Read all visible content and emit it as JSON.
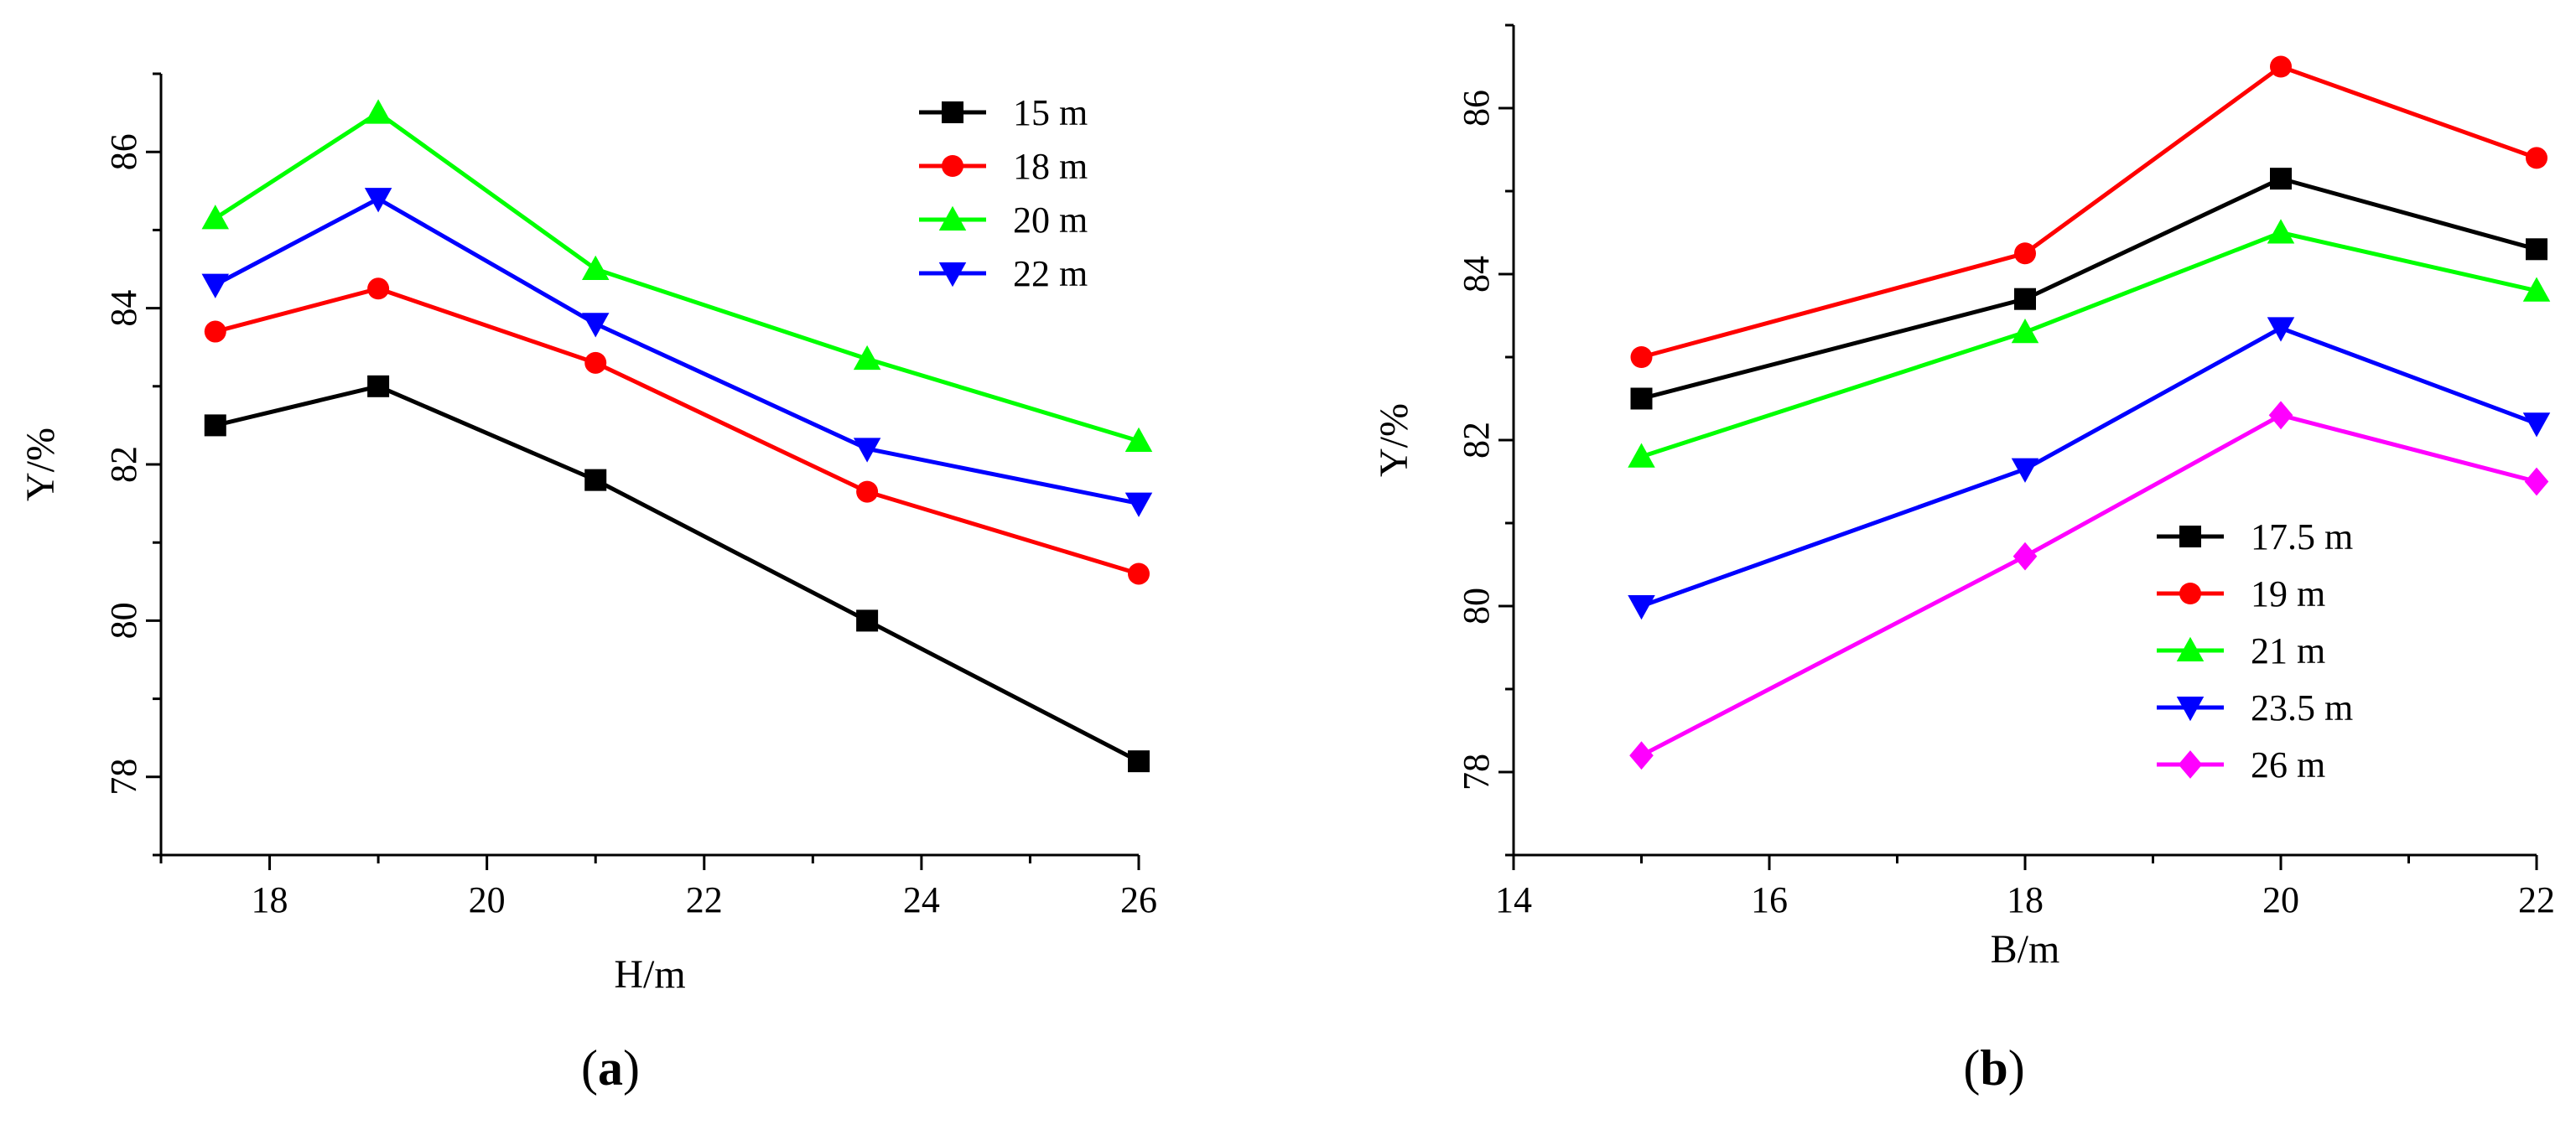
{
  "chart_data": [
    {
      "type": "line",
      "panel_label": "a",
      "xlabel": "H/m",
      "ylabel": "Y/%",
      "xlim": [
        17,
        26
      ],
      "ylim": [
        77,
        87
      ],
      "xticks": [
        "18",
        "20",
        "22",
        "24",
        "26"
      ],
      "yticks": [
        "78",
        "80",
        "82",
        "84",
        "86"
      ],
      "x": [
        17.5,
        19,
        21,
        23.5,
        26
      ],
      "legend_position": "top-right",
      "series": [
        {
          "name": "15 m",
          "color": "#000000",
          "marker": "square",
          "values": [
            82.5,
            83.0,
            81.8,
            80.0,
            78.2
          ]
        },
        {
          "name": "18 m",
          "color": "#ff0000",
          "marker": "circle",
          "values": [
            83.7,
            84.25,
            83.3,
            81.65,
            80.6
          ]
        },
        {
          "name": "20 m",
          "color": "#00ff00",
          "marker": "triangle-up",
          "values": [
            85.15,
            86.5,
            84.5,
            83.35,
            82.3
          ]
        },
        {
          "name": "22 m",
          "color": "#0000ff",
          "marker": "triangle-down",
          "values": [
            84.3,
            85.4,
            83.8,
            82.2,
            81.5
          ]
        }
      ]
    },
    {
      "type": "line",
      "panel_label": "b",
      "xlabel": "B/m",
      "ylabel": "Y/%",
      "xlim": [
        14,
        22
      ],
      "ylim": [
        77,
        87
      ],
      "xticks": [
        "14",
        "16",
        "18",
        "20",
        "22"
      ],
      "yticks": [
        "78",
        "80",
        "82",
        "84",
        "86"
      ],
      "x": [
        15,
        18,
        20,
        22
      ],
      "legend_position": "bottom-right",
      "series": [
        {
          "name": "17.5 m",
          "color": "#000000",
          "marker": "square",
          "values": [
            82.5,
            83.7,
            85.15,
            84.3
          ]
        },
        {
          "name": "19 m",
          "color": "#ff0000",
          "marker": "circle",
          "values": [
            83.0,
            84.25,
            86.5,
            85.4
          ]
        },
        {
          "name": "21 m",
          "color": "#00ff00",
          "marker": "triangle-up",
          "values": [
            81.8,
            83.3,
            84.5,
            83.8
          ]
        },
        {
          "name": "23.5 m",
          "color": "#0000ff",
          "marker": "triangle-down",
          "values": [
            80.0,
            81.65,
            83.35,
            82.2
          ]
        },
        {
          "name": "26 m",
          "color": "#ff00ff",
          "marker": "diamond",
          "values": [
            78.2,
            80.6,
            82.3,
            81.5
          ]
        }
      ]
    }
  ]
}
